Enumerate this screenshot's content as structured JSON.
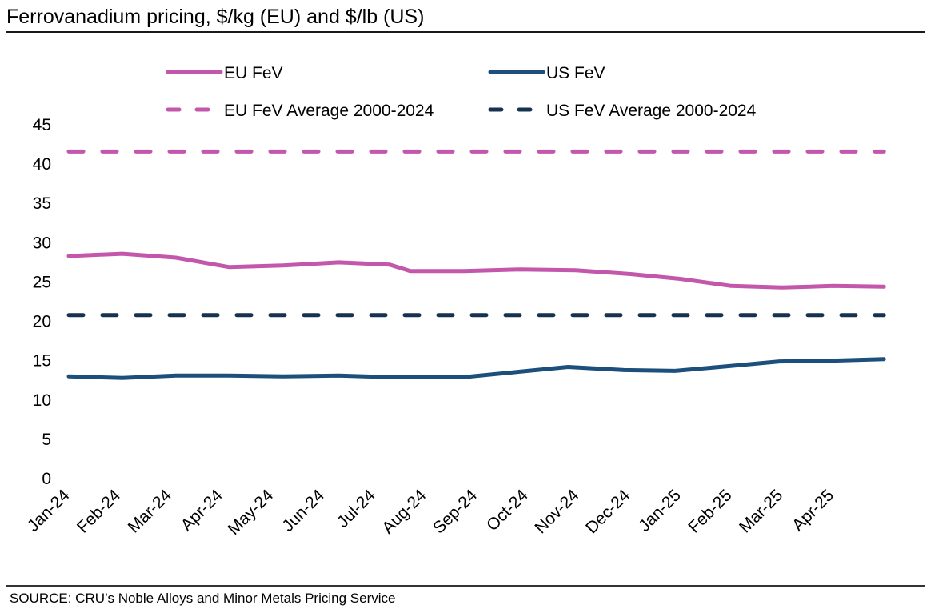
{
  "header": {
    "title": "Ferrovanadium pricing, $/kg (EU) and $/lb (US)"
  },
  "footer": {
    "source": "SOURCE: CRU’s Noble Alloys and Minor Metals Pricing Service"
  },
  "chart_data": {
    "type": "line",
    "title": "Ferrovanadium pricing, $/kg (EU) and $/lb (US)",
    "xlabel": "",
    "ylabel": "",
    "ylim": [
      0,
      45
    ],
    "yticks": [
      0,
      5,
      10,
      15,
      20,
      25,
      30,
      35,
      40,
      45
    ],
    "categories": [
      "Jan-24",
      "Feb-24",
      "Mar-24",
      "Apr-24",
      "May-24",
      "Jun-24",
      "Jul-24",
      "Aug-24",
      "Sep-24",
      "Oct-24",
      "Nov-24",
      "Dec-24",
      "Jan-25",
      "Feb-25",
      "Mar-25",
      "Apr-25"
    ],
    "grid": false,
    "legend": "top",
    "series": [
      {
        "name": "EU FeV",
        "style": "solid",
        "color": "#c257ab",
        "x": [
          0,
          1.05,
          2.1,
          3.15,
          4.2,
          5.3,
          6.3,
          6.7,
          7.75,
          8.85,
          9.95,
          11.05,
          12.0,
          13.0,
          14.0,
          15.0,
          16.0
        ],
        "values": [
          28.2,
          28.5,
          28.0,
          26.8,
          27.0,
          27.4,
          27.1,
          26.3,
          26.3,
          26.5,
          26.4,
          25.9,
          25.3,
          24.4,
          24.2,
          24.4,
          24.3
        ]
      },
      {
        "name": "US FeV",
        "style": "solid",
        "color": "#1d4f7c",
        "x": [
          0,
          1.05,
          2.1,
          3.15,
          4.2,
          5.3,
          6.3,
          7.75,
          8.85,
          9.8,
          10.9,
          11.9,
          12.95,
          13.95,
          15.0,
          16.0
        ],
        "values": [
          12.9,
          12.7,
          13.0,
          13.0,
          12.9,
          13.0,
          12.8,
          12.8,
          13.5,
          14.1,
          13.7,
          13.6,
          14.2,
          14.8,
          14.9,
          15.1
        ]
      },
      {
        "name": "EU FeV Average 2000-2024",
        "style": "dashed",
        "color": "#c257ab",
        "x": [
          0,
          16.0
        ],
        "values": [
          41.5,
          41.5
        ]
      },
      {
        "name": "US FeV Average 2000-2024",
        "style": "dashed",
        "color": "#17324f",
        "x": [
          0,
          16.0
        ],
        "values": [
          20.7,
          20.7
        ]
      }
    ]
  }
}
